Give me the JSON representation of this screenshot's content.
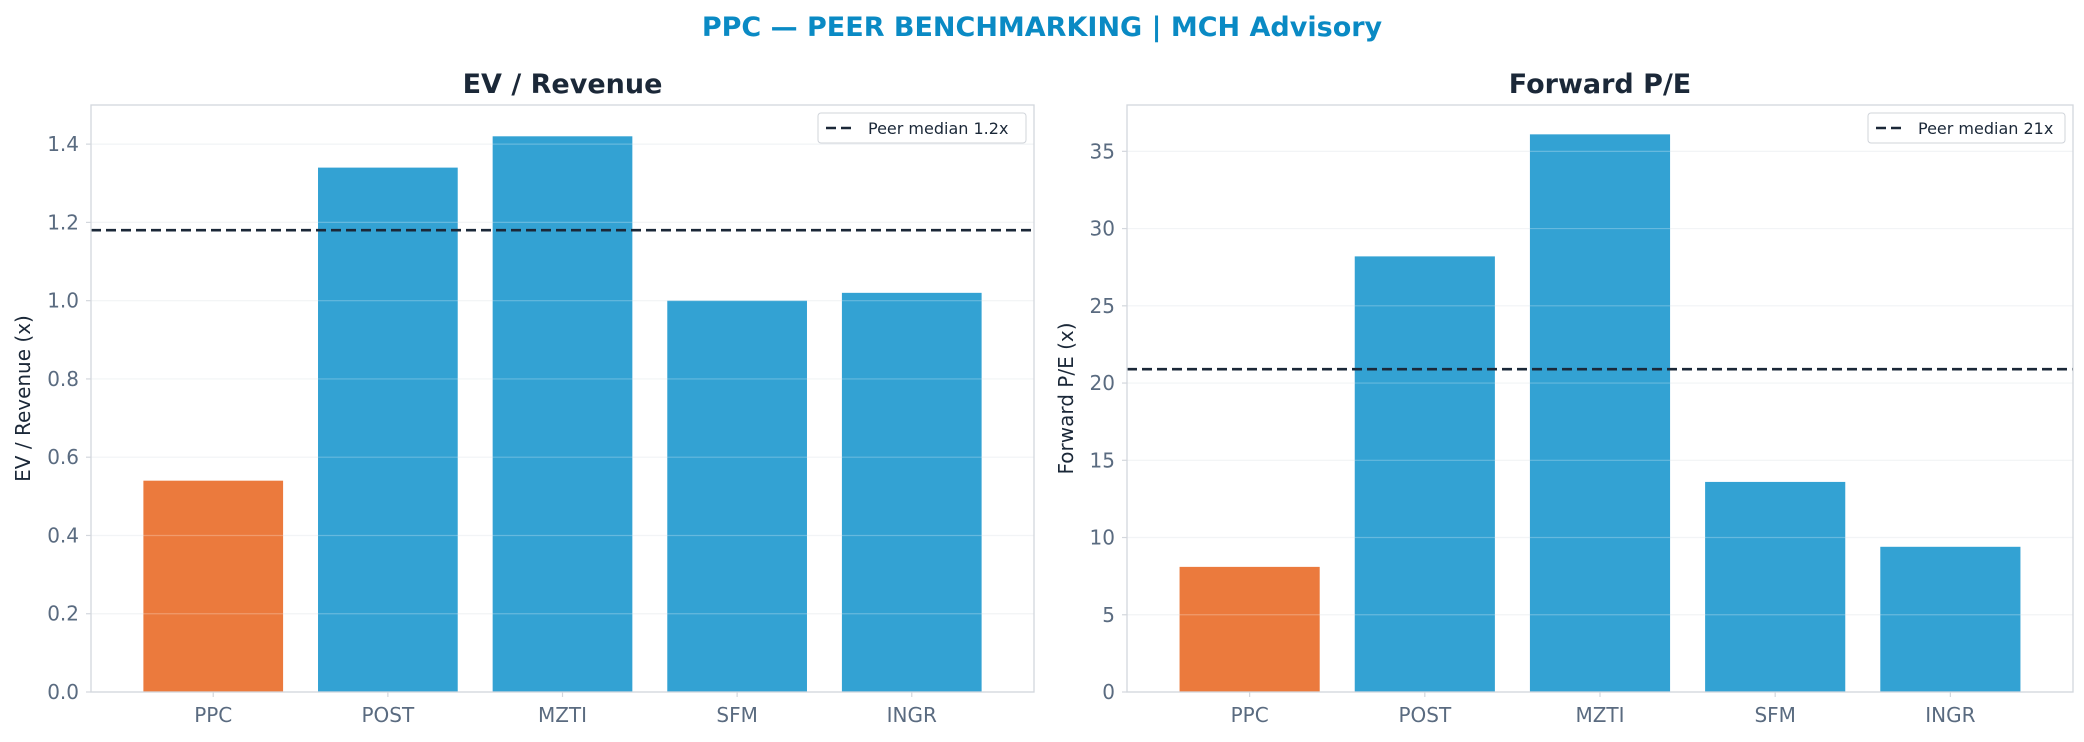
{
  "figure": {
    "title": "PPC — PEER BENCHMARKING | MCH Advisory",
    "title_color": "#0a8ac4"
  },
  "colors": {
    "highlight": "#eb7a3d",
    "peer": "#33a2d3",
    "median_line": "#1b2838",
    "grid": "#eef0f3",
    "axes_frame": "#d3d7dd"
  },
  "chart_data": [
    {
      "type": "bar",
      "title": "EV / Revenue",
      "xlabel": "",
      "ylabel": "EV / Revenue (x)",
      "categories": [
        "PPC",
        "POST",
        "MZTI",
        "SFM",
        "INGR"
      ],
      "values": [
        0.54,
        1.34,
        1.42,
        1.0,
        1.02
      ],
      "highlight": "PPC",
      "ylim": [
        0,
        1.5
      ],
      "yticks": [
        0.0,
        0.2,
        0.4,
        0.6,
        0.8,
        1.0,
        1.2,
        1.4
      ],
      "ytick_labels": [
        "0.0",
        "0.2",
        "0.4",
        "0.6",
        "0.8",
        "1.0",
        "1.2",
        "1.4"
      ],
      "reference_line": {
        "value": 1.18,
        "label": "Peer median 1.2x",
        "style": "dashed"
      },
      "grid": true,
      "legend": "top-right"
    },
    {
      "type": "bar",
      "title": "Forward P/E",
      "xlabel": "",
      "ylabel": "Forward P/E (x)",
      "categories": [
        "PPC",
        "POST",
        "MZTI",
        "SFM",
        "INGR"
      ],
      "values": [
        8.1,
        28.2,
        36.1,
        13.6,
        9.4
      ],
      "highlight": "PPC",
      "ylim": [
        0,
        38
      ],
      "yticks": [
        0,
        5,
        10,
        15,
        20,
        25,
        30,
        35
      ],
      "ytick_labels": [
        "0",
        "5",
        "10",
        "15",
        "20",
        "25",
        "30",
        "35"
      ],
      "reference_line": {
        "value": 20.9,
        "label": "Peer median 21x",
        "style": "dashed"
      },
      "grid": true,
      "legend": "top-right"
    }
  ]
}
